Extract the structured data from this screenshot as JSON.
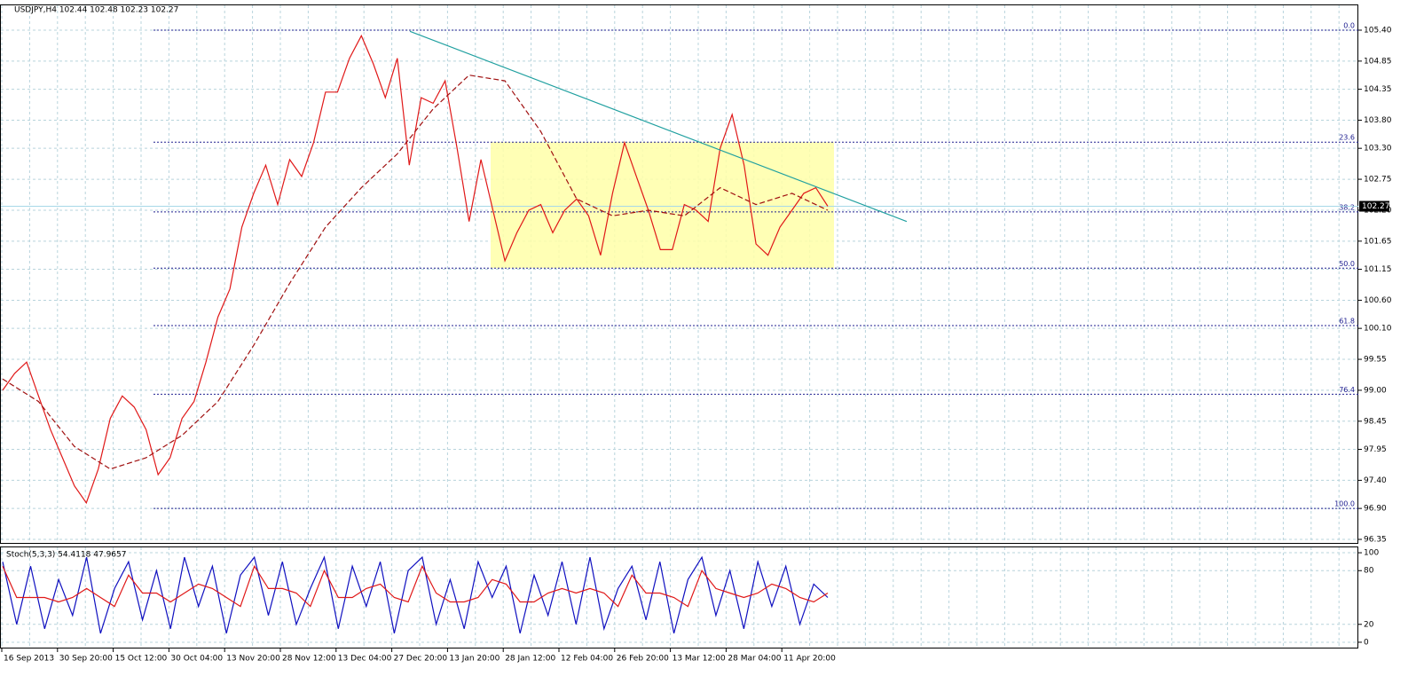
{
  "chart_data": [
    {
      "type": "line",
      "title": "USDJPY,H4  102.44 102.48 102.23 102.27",
      "x_labels": [
        "16 Sep 2013",
        "30 Sep 20:00",
        "15 Oct 12:00",
        "30 Oct 04:00",
        "13 Nov 20:00",
        "28 Nov 12:00",
        "13 Dec 04:00",
        "27 Dec 20:00",
        "13 Jan 20:00",
        "28 Jan 12:00",
        "12 Feb 04:00",
        "26 Feb 20:00",
        "13 Mar 12:00",
        "28 Mar 04:00",
        "11 Apr 20:00"
      ],
      "series": [
        {
          "color": "#e01818",
          "values": [
            99.0,
            99.3,
            99.5,
            98.9,
            98.3,
            97.8,
            97.3,
            97.0,
            97.6,
            98.5,
            98.9,
            98.7,
            98.3,
            97.5,
            97.8,
            98.5,
            98.8,
            99.5,
            100.3,
            100.8,
            101.9,
            102.5,
            103.0,
            102.3,
            103.1,
            102.8,
            103.4,
            104.3,
            104.3,
            104.9,
            105.3,
            104.8,
            104.2,
            104.9,
            103.0,
            104.2,
            104.1,
            104.5,
            103.3,
            102.0,
            103.1,
            102.2,
            101.3,
            101.8,
            102.2,
            102.3,
            101.8,
            102.2,
            102.4,
            102.1,
            101.4,
            102.5,
            103.4,
            102.8,
            102.2,
            101.5,
            101.5,
            102.3,
            102.2,
            102.0,
            103.3,
            103.9,
            103.0,
            101.6,
            101.4,
            101.9,
            102.2,
            102.5,
            102.6,
            102.27
          ]
        },
        {
          "color": "#a01010",
          "dashed": true,
          "values": [
            99.2,
            98.8,
            98.0,
            97.6,
            97.8,
            98.2,
            98.8,
            99.8,
            100.9,
            101.9,
            102.6,
            103.2,
            104.0,
            104.6,
            104.5,
            103.6,
            102.4,
            102.1,
            102.2,
            102.1,
            102.6,
            102.3,
            102.5,
            102.2
          ]
        }
      ],
      "ylim": [
        96.287,
        105.857
      ],
      "yticks": [
        {
          "value": 105.4,
          "label": "105.40"
        },
        {
          "value": 104.85,
          "label": "104.85"
        },
        {
          "value": 104.35,
          "label": "104.35"
        },
        {
          "value": 103.8,
          "label": "103.80"
        },
        {
          "value": 103.3,
          "label": "103.30"
        },
        {
          "value": 102.75,
          "label": "102.75"
        },
        {
          "value": 102.2,
          "label": "102.20"
        },
        {
          "value": 101.65,
          "label": "101.65"
        },
        {
          "value": 101.15,
          "label": "101.15"
        },
        {
          "value": 100.6,
          "label": "100.60"
        },
        {
          "value": 100.1,
          "label": "100.10"
        },
        {
          "value": 99.55,
          "label": "99.55"
        },
        {
          "value": 99.0,
          "label": "99.00"
        },
        {
          "value": 98.45,
          "label": "98.45"
        },
        {
          "value": 97.95,
          "label": "97.95"
        },
        {
          "value": 97.4,
          "label": "97.40"
        },
        {
          "value": 96.9,
          "label": "96.90"
        },
        {
          "value": 96.35,
          "label": "96.35"
        }
      ],
      "fib_levels": [
        {
          "label": "0.0",
          "value": 105.4
        },
        {
          "label": "23.6",
          "value": 103.41
        },
        {
          "label": "38.2",
          "value": 102.17
        },
        {
          "label": "50.0",
          "value": 101.17
        },
        {
          "label": "61.8",
          "value": 100.15
        },
        {
          "label": "76.4",
          "value": 98.93
        },
        {
          "label": "100.0",
          "value": 96.9
        }
      ],
      "zone": [
        101.17,
        103.41
      ],
      "trendline": [
        105.38,
        102.0
      ],
      "last_price": {
        "value": 102.27,
        "label": "102.27"
      },
      "grid": true
    },
    {
      "type": "line",
      "title": "Stoch(5,3,3) 54.4118 47.9657",
      "series": [
        {
          "color": "#1010c0",
          "values": [
            90,
            20,
            85,
            15,
            70,
            30,
            95,
            10,
            60,
            90,
            25,
            80,
            15,
            95,
            40,
            85,
            10,
            75,
            95,
            30,
            90,
            20,
            60,
            95,
            15,
            85,
            40,
            90,
            10,
            80,
            95,
            20,
            70,
            15,
            90,
            50,
            85,
            10,
            75,
            30,
            90,
            20,
            95,
            15,
            60,
            85,
            25,
            90,
            10,
            70,
            95,
            30,
            80,
            15,
            90,
            40,
            85,
            20,
            65,
            50
          ]
        },
        {
          "color": "#e01818",
          "values": [
            85,
            50,
            50,
            50,
            45,
            50,
            60,
            50,
            40,
            75,
            55,
            55,
            45,
            55,
            65,
            60,
            50,
            40,
            85,
            60,
            60,
            55,
            40,
            80,
            50,
            50,
            60,
            65,
            50,
            45,
            85,
            55,
            45,
            45,
            50,
            70,
            65,
            45,
            45,
            55,
            60,
            55,
            60,
            55,
            40,
            75,
            55,
            55,
            50,
            40,
            80,
            60,
            55,
            50,
            55,
            65,
            60,
            50,
            45,
            55
          ]
        }
      ],
      "ylim": [
        -6,
        107
      ],
      "yticks": [
        0,
        20,
        80,
        100
      ],
      "grid": true
    }
  ]
}
